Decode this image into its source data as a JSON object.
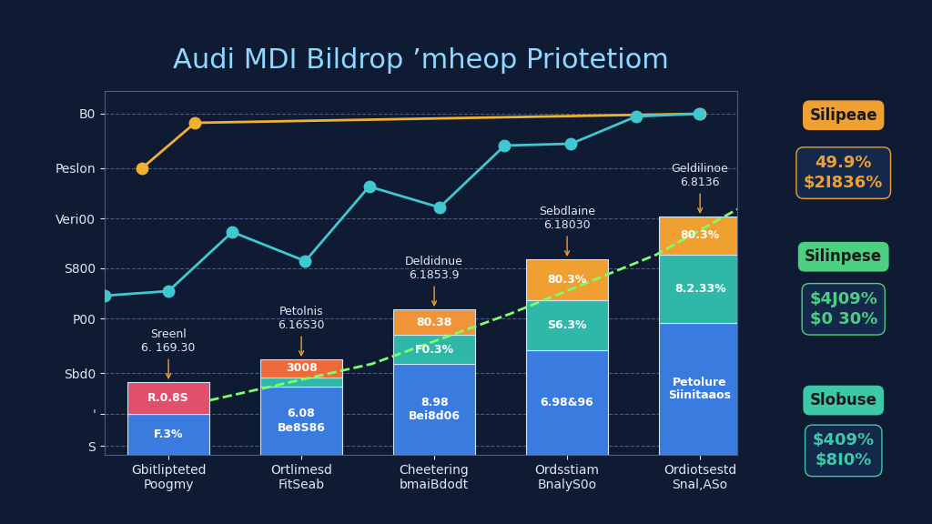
{
  "chart_data": {
    "type": "bar",
    "stacked": true,
    "grid": true,
    "title": "Audi MDI Bildrop ’mheop Priotetiom",
    "categories": [
      "Gbitlipteted\nPoogmy",
      "Ortlimesd\nFitSeab",
      "Cheetering\nbmaiBdodt",
      "Ordsstiam\nBnalyS0o",
      "Ordiotsestd\nSnal,ASo"
    ],
    "xlim": [
      -0.48,
      4.28
    ],
    "ylim": [
      0,
      8
    ],
    "yticks": [
      {
        "value": 0.2,
        "label": "S"
      },
      {
        "value": 0.9,
        "label": "'"
      },
      {
        "value": 1.8,
        "label": "Sbd0"
      },
      {
        "value": 3.0,
        "label": "P00"
      },
      {
        "value": 4.1,
        "label": "S800"
      },
      {
        "value": 5.2,
        "label": "Veri00"
      },
      {
        "value": 6.3,
        "label": "Peslon"
      },
      {
        "value": 7.5,
        "label": "B0"
      }
    ],
    "series": [
      {
        "color": "#3a7be0",
        "values": [
          0.9,
          1.5,
          2.0,
          2.3,
          2.9
        ],
        "labels": [
          "F.3%",
          "6.08\nBe8S86",
          "8.98\nBei8d06",
          "6.98&96",
          "Petolure\nSiinitaaos"
        ]
      },
      {
        "color": "#2fb8a8",
        "values": [
          0,
          0.2,
          0.64,
          1.1,
          1.5
        ],
        "labels": [
          null,
          null,
          "F0.3%",
          "S6.3%",
          "8.2.33%"
        ]
      },
      {
        "colors": [
          "#e0506a",
          "#ef6a3a",
          "#f0943a",
          "#f0a030",
          "#f0a030"
        ],
        "values": [
          0.7,
          0.4,
          0.56,
          0.9,
          0.84
        ],
        "labels": [
          "R.0.8S",
          "3008",
          "80.38",
          "80.3%",
          "80.3%"
        ]
      }
    ],
    "bar_notes": [
      "Sreenl\n6. 169.30",
      "Petolnis\n6.16S30",
      "Deldidnue\n6.1853.9",
      "Sebdlaine\n6.18030",
      "Geldilinoe\n6.8136"
    ],
    "lines": [
      {
        "type": "line",
        "color": "#f0b030",
        "marker": "o",
        "line_style": "solid",
        "x": [
          -0.2,
          0.2,
          4.0
        ],
        "values": [
          6.3,
          7.3,
          7.5
        ]
      },
      {
        "type": "line",
        "color": "#3fc8d0",
        "marker": "o",
        "line_style": "solid",
        "x": [
          -0.48,
          0,
          0.48,
          1.03,
          1.51,
          2.04,
          2.53,
          3.03,
          3.52,
          3.99
        ],
        "values": [
          3.5,
          3.6,
          4.9,
          4.26,
          5.9,
          5.44,
          6.8,
          6.84,
          7.44,
          7.5
        ]
      },
      {
        "type": "line",
        "color": "#7cff6a",
        "line_style": "dashed",
        "x": [
          0.31,
          1.53,
          2.57,
          3.67,
          4.28
        ],
        "values": [
          1.2,
          2.0,
          3.1,
          4.4,
          5.4
        ]
      }
    ],
    "callouts": [
      {
        "title": "Silipeae",
        "lines": [
          "49.9%",
          "$2I836%"
        ]
      },
      {
        "title": "Silinpese",
        "lines": [
          "$4J09%",
          "$0 30%"
        ]
      },
      {
        "title": "Slobuse",
        "lines": [
          "$409%",
          "$8I0%"
        ]
      }
    ]
  }
}
